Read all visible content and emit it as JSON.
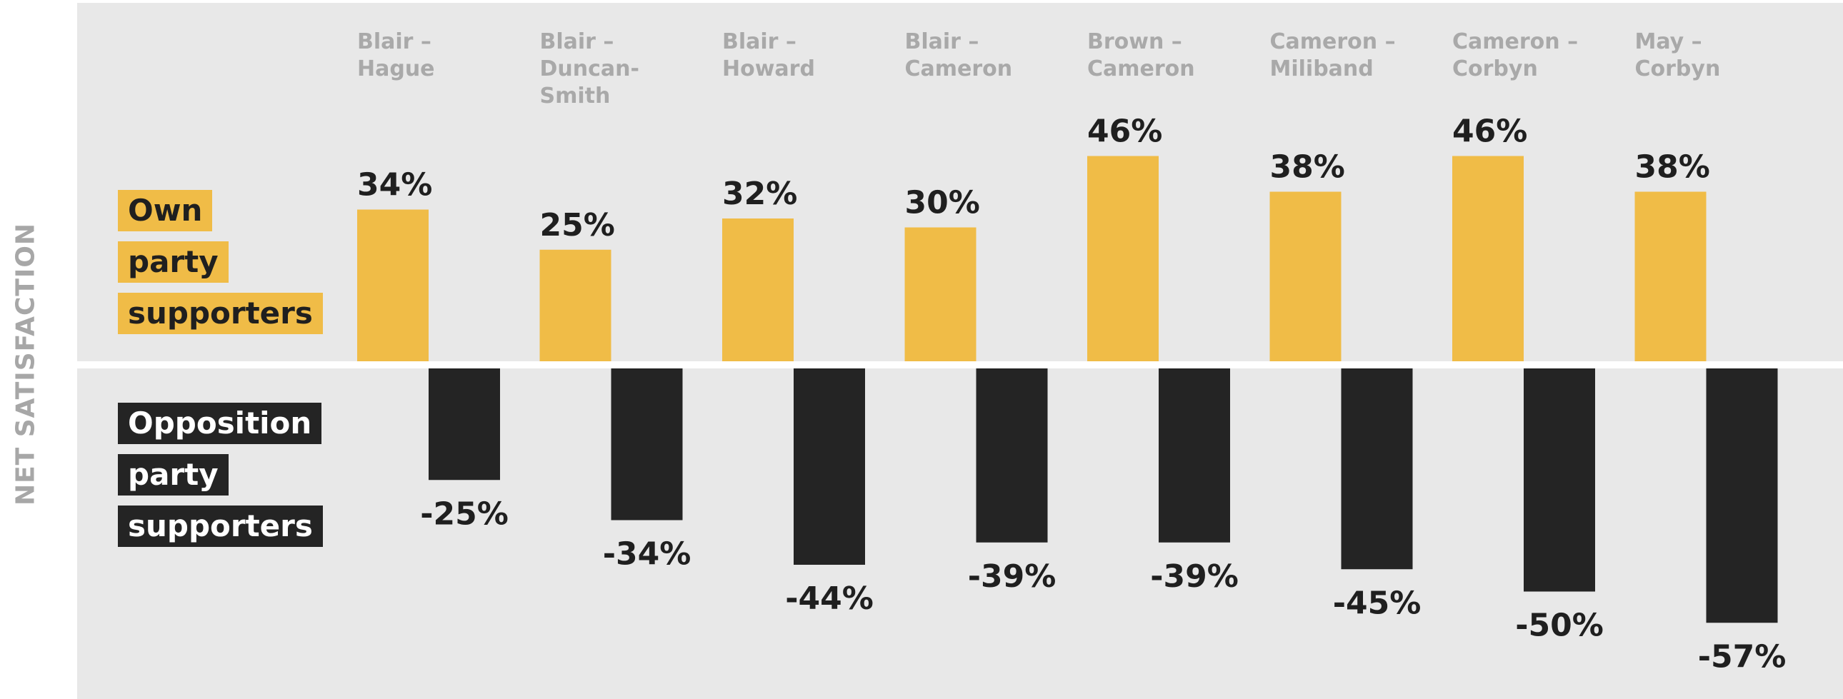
{
  "chart_data": {
    "type": "bar",
    "ylabel": "NET SATISFACTION",
    "categories": [
      [
        "Blair –",
        "Hague"
      ],
      [
        "Blair –",
        "Duncan-",
        "Smith"
      ],
      [
        "Blair –",
        "Howard"
      ],
      [
        "Blair –",
        "Cameron"
      ],
      [
        "Brown –",
        "Cameron"
      ],
      [
        "Cameron –",
        "Miliband"
      ],
      [
        "Cameron –",
        "Corbyn"
      ],
      [
        "May –",
        "Corbyn"
      ]
    ],
    "series": [
      {
        "name": "Own party supporters",
        "legend_lines": [
          "Own",
          "party",
          "supporters"
        ],
        "color": "#f0bc47",
        "values": [
          34,
          25,
          32,
          30,
          46,
          38,
          46,
          38
        ],
        "labels": [
          "34%",
          "25%",
          "32%",
          "30%",
          "46%",
          "38%",
          "46%",
          "38%"
        ]
      },
      {
        "name": "Opposition party supporters",
        "legend_lines": [
          "Opposition",
          "party",
          "supporters"
        ],
        "color": "#242424",
        "values": [
          -25,
          -34,
          -44,
          -39,
          -39,
          -45,
          -50,
          -57
        ],
        "labels": [
          "-25%",
          "-34%",
          "-44%",
          "-39%",
          "-39%",
          "-45%",
          "-50%",
          "-57%"
        ]
      }
    ],
    "ylim": [
      -60,
      60
    ],
    "grid": false,
    "legend": "left"
  }
}
